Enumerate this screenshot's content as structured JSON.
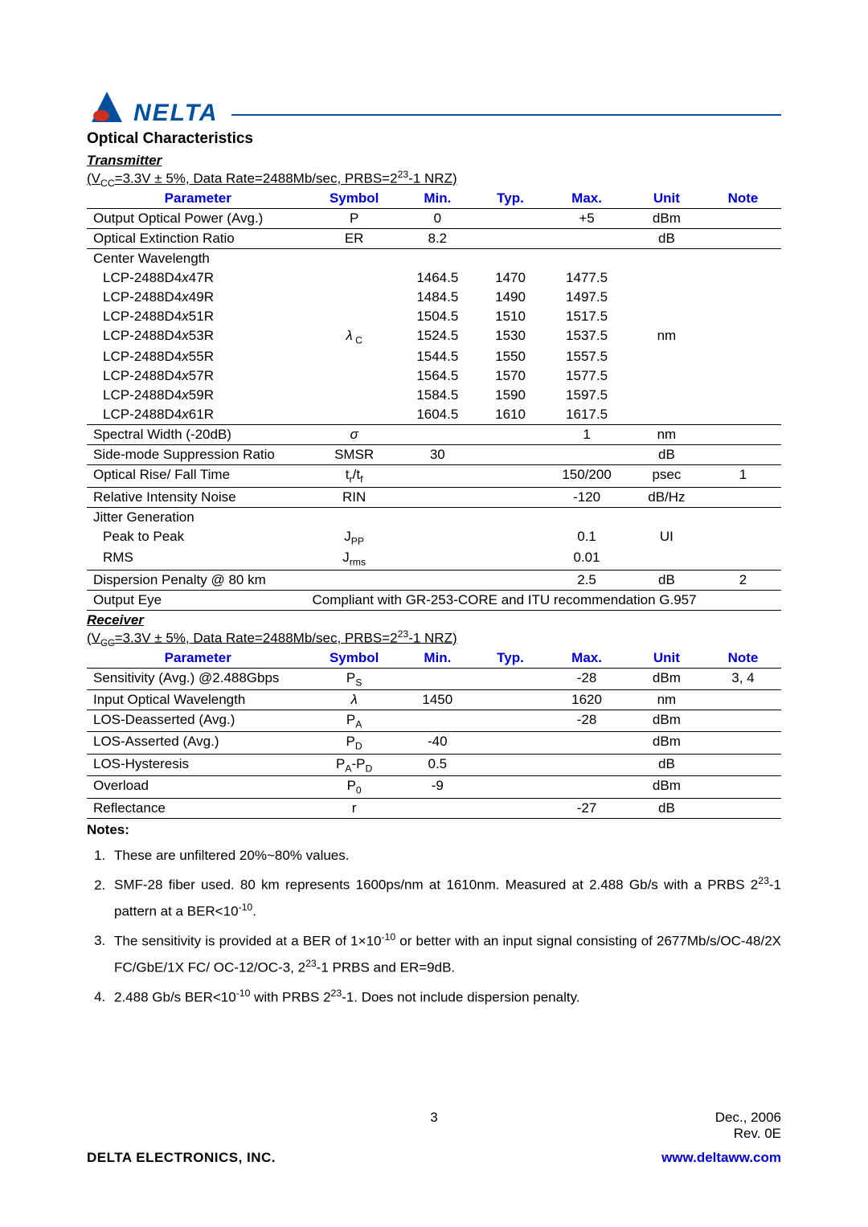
{
  "brand": {
    "name": "NELTA",
    "accent": "#0050a0"
  },
  "section_title": "Optical Characteristics",
  "transmitter": {
    "heading": "Transmitter",
    "conditions": "(V_CC=3.3V ± 5%, Data Rate=2488Mb/sec, PRBS=2^23-1 NRZ)",
    "headers": [
      "Parameter",
      "Symbol",
      "Min.",
      "Typ.",
      "Max.",
      "Unit",
      "Note"
    ],
    "rows": [
      {
        "param": "Output Optical Power (Avg.)",
        "symbol": "P",
        "min": "0",
        "typ": "",
        "max": "+5",
        "unit": "dBm",
        "note": "",
        "rule": true
      },
      {
        "param": "Optical Extinction Ratio",
        "symbol": "ER",
        "min": "8.2",
        "typ": "",
        "max": "",
        "unit": "dB",
        "note": "",
        "rule": true
      },
      {
        "param": "Center Wavelength",
        "symbol": "",
        "min": "",
        "typ": "",
        "max": "",
        "unit": "",
        "note": ""
      },
      {
        "param": "LCP-2488D4x47R",
        "indent": true,
        "symbol": "",
        "min": "1464.5",
        "typ": "1470",
        "max": "1477.5",
        "unit": "",
        "note": ""
      },
      {
        "param": "LCP-2488D4x49R",
        "indent": true,
        "symbol": "",
        "min": "1484.5",
        "typ": "1490",
        "max": "1497.5",
        "unit": "",
        "note": ""
      },
      {
        "param": "LCP-2488D4x51R",
        "indent": true,
        "symbol": "",
        "min": "1504.5",
        "typ": "1510",
        "max": "1517.5",
        "unit": "",
        "note": ""
      },
      {
        "param": "LCP-2488D4x53R",
        "indent": true,
        "symbol": "λ_C",
        "min": "1524.5",
        "typ": "1530",
        "max": "1537.5",
        "unit": "nm",
        "note": ""
      },
      {
        "param": "LCP-2488D4x55R",
        "indent": true,
        "symbol": "",
        "min": "1544.5",
        "typ": "1550",
        "max": "1557.5",
        "unit": "",
        "note": ""
      },
      {
        "param": "LCP-2488D4x57R",
        "indent": true,
        "symbol": "",
        "min": "1564.5",
        "typ": "1570",
        "max": "1577.5",
        "unit": "",
        "note": ""
      },
      {
        "param": "LCP-2488D4x59R",
        "indent": true,
        "symbol": "",
        "min": "1584.5",
        "typ": "1590",
        "max": "1597.5",
        "unit": "",
        "note": ""
      },
      {
        "param": "LCP-2488D4x61R",
        "indent": true,
        "symbol": "",
        "min": "1604.5",
        "typ": "1610",
        "max": "1617.5",
        "unit": "",
        "note": "",
        "rule": true
      },
      {
        "param": "Spectral Width (-20dB)",
        "symbol": "σ",
        "symbol_italic": true,
        "min": "",
        "typ": "",
        "max": "1",
        "unit": "nm",
        "note": "",
        "rule": true
      },
      {
        "param": "Side-mode Suppression Ratio",
        "symbol": "SMSR",
        "min": "30",
        "typ": "",
        "max": "",
        "unit": "dB",
        "note": "",
        "rule": true
      },
      {
        "param": "Optical Rise/ Fall Time",
        "symbol": "t_r/t_f",
        "min": "",
        "typ": "",
        "max": "150/200",
        "unit": "psec",
        "note": "1",
        "rule": true
      },
      {
        "param": "Relative Intensity Noise",
        "symbol": "RIN",
        "min": "",
        "typ": "",
        "max": "-120",
        "unit": "dB/Hz",
        "note": "",
        "rule": true
      },
      {
        "param": "Jitter Generation",
        "symbol": "",
        "min": "",
        "typ": "",
        "max": "",
        "unit": "",
        "note": ""
      },
      {
        "param": "Peak to Peak",
        "indent": true,
        "symbol": "J_PP",
        "min": "",
        "typ": "",
        "max": "0.1",
        "unit": "UI",
        "note": ""
      },
      {
        "param": "RMS",
        "indent": true,
        "symbol": "J_rms",
        "min": "",
        "typ": "",
        "max": "0.01",
        "unit": "",
        "note": "",
        "rule": true
      },
      {
        "param": "Dispersion Penalty @ 80 km",
        "symbol": "",
        "min": "",
        "typ": "",
        "max": "2.5",
        "unit": "dB",
        "note": "2",
        "rule": true
      },
      {
        "param": "Output Eye",
        "symbol": "",
        "span_text": "Compliant with GR-253-CORE and ITU recommendation G.957",
        "rule": true,
        "last": true
      }
    ]
  },
  "receiver": {
    "heading": "Receiver",
    "conditions": "(V_CC=3.3V ± 5%, Data Rate=2488Mb/sec, PRBS=2^23-1 NRZ)",
    "headers": [
      "Parameter",
      "Symbol",
      "Min.",
      "Typ.",
      "Max.",
      "Unit",
      "Note"
    ],
    "rows": [
      {
        "param": "Sensitivity (Avg.) @2.488Gbps",
        "symbol": "P_S",
        "min": "",
        "typ": "",
        "max": "-28",
        "unit": "dBm",
        "note": "3, 4",
        "rule": true
      },
      {
        "param": "Input Optical Wavelength",
        "symbol": "λ",
        "symbol_italic": true,
        "min": "1450",
        "typ": "",
        "max": "1620",
        "unit": "nm",
        "note": "",
        "rule": true
      },
      {
        "param": "LOS-Deasserted (Avg.)",
        "symbol": "P_A",
        "min": "",
        "typ": "",
        "max": "-28",
        "unit": "dBm",
        "note": "",
        "rule": true
      },
      {
        "param": "LOS-Asserted (Avg.)",
        "symbol": "P_D",
        "min": "-40",
        "typ": "",
        "max": "",
        "unit": "dBm",
        "note": "",
        "rule": true
      },
      {
        "param": "LOS-Hysteresis",
        "symbol": "P_A-P_D",
        "min": "0.5",
        "typ": "",
        "max": "",
        "unit": "dB",
        "note": "",
        "rule": true
      },
      {
        "param": "Overload",
        "symbol": "P_0",
        "min": "-9",
        "typ": "",
        "max": "",
        "unit": "dBm",
        "note": "",
        "rule": true
      },
      {
        "param": "Reflectance",
        "symbol": "r",
        "min": "",
        "typ": "",
        "max": "-27",
        "unit": "dB",
        "note": "",
        "rule": true,
        "last": true
      }
    ]
  },
  "notes": {
    "heading": "Notes:",
    "items": [
      "These are unfiltered 20%~80% values.",
      "SMF-28 fiber used. 80 km represents 1600ps/nm at 1610nm. Measured at 2.488 Gb/s with a PRBS 2^23-1 pattern at a BER<10^-10.",
      "The sensitivity is provided at a BER of 1×10^-10 or better with an input signal consisting of 2677Mb/s/OC-48/2X FC/GbE/1X FC/ OC-12/OC-3, 2^23-1 PRBS and ER=9dB.",
      "2.488 Gb/s BER<10^-10 with PRBS 2^23-1. Does not include dispersion penalty."
    ]
  },
  "footer": {
    "page": "3",
    "date": "Dec., 2006",
    "rev": "Rev. 0E",
    "company": "DELTA ELECTRONICS, INC.",
    "url": "www.deltaww.com"
  },
  "colors": {
    "header_blue": "#0000d0",
    "logo_blue": "#0050a0",
    "logo_red": "#d03020",
    "text": "#000000",
    "bg": "#ffffff"
  },
  "typography": {
    "body_fontsize_pt": 12,
    "title_fontsize_pt": 14,
    "font_family": "Arial"
  },
  "table_col_widths_pct": [
    32,
    13,
    11,
    10,
    12,
    11,
    11
  ]
}
